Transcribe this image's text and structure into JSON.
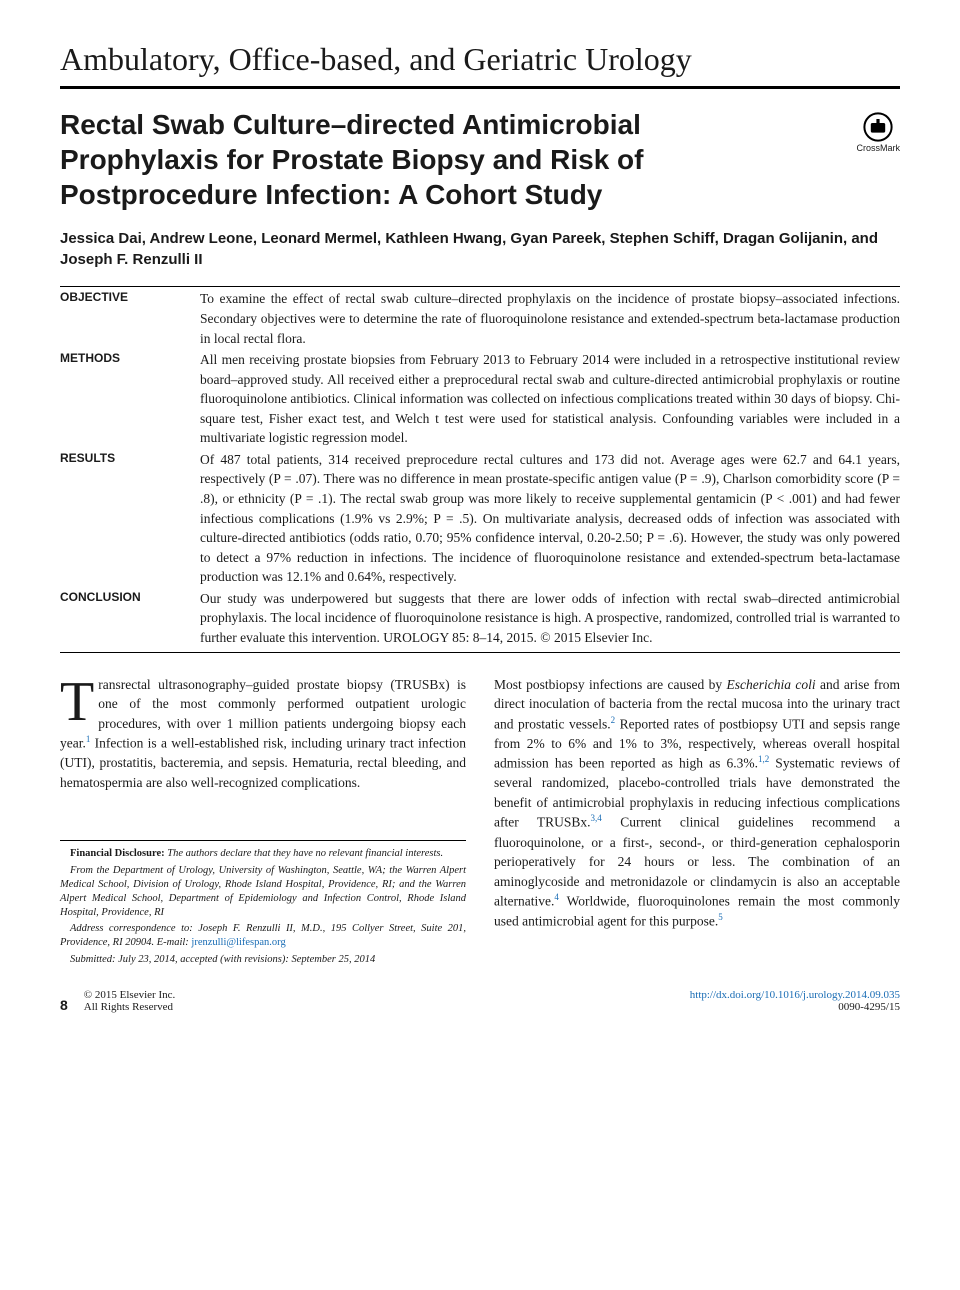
{
  "section_header": "Ambulatory, Office-based, and Geriatric Urology",
  "article_title": "Rectal Swab Culture–directed Antimicrobial Prophylaxis for Prostate Biopsy and Risk of Postprocedure Infection: A Cohort Study",
  "crossmark_label": "CrossMark",
  "authors": "Jessica Dai, Andrew Leone, Leonard Mermel, Kathleen Hwang, Gyan Pareek, Stephen Schiff, Dragan Golijanin, and Joseph F. Renzulli II",
  "abstract": {
    "objective": {
      "label": "OBJECTIVE",
      "text": "To examine the effect of rectal swab culture–directed prophylaxis on the incidence of prostate biopsy–associated infections. Secondary objectives were to determine the rate of fluoroquinolone resistance and extended-spectrum beta-lactamase production in local rectal flora."
    },
    "methods": {
      "label": "METHODS",
      "text": "All men receiving prostate biopsies from February 2013 to February 2014 were included in a retrospective institutional review board–approved study. All received either a preprocedural rectal swab and culture-directed antimicrobial prophylaxis or routine fluoroquinolone antibiotics. Clinical information was collected on infectious complications treated within 30 days of biopsy. Chi-square test, Fisher exact test, and Welch t test were used for statistical analysis. Confounding variables were included in a multivariate logistic regression model."
    },
    "results": {
      "label": "RESULTS",
      "text": "Of 487 total patients, 314 received preprocedure rectal cultures and 173 did not. Average ages were 62.7 and 64.1 years, respectively (P = .07). There was no difference in mean prostate-specific antigen value (P = .9), Charlson comorbidity score (P = .8), or ethnicity (P = .1). The rectal swab group was more likely to receive supplemental gentamicin (P < .001) and had fewer infectious complications (1.9% vs 2.9%; P = .5). On multivariate analysis, decreased odds of infection was associated with culture-directed antibiotics (odds ratio, 0.70; 95% confidence interval, 0.20-2.50; P = .6). However, the study was only powered to detect a 97% reduction in infections. The incidence of fluoroquinolone resistance and extended-spectrum beta-lactamase production was 12.1% and 0.64%, respectively."
    },
    "conclusion": {
      "label": "CONCLUSION",
      "text": "Our study was underpowered but suggests that there are lower odds of infection with rectal swab–directed antimicrobial prophylaxis. The local incidence of fluoroquinolone resistance is high. A prospective, randomized, controlled trial is warranted to further evaluate this intervention.   UROLOGY 85: 8–14, 2015. © 2015 Elsevier Inc."
    }
  },
  "body": {
    "col1_p1_dropcap": "T",
    "col1_p1": "ransrectal ultrasonography–guided prostate biopsy (TRUSBx) is one of the most commonly performed outpatient urologic procedures, with over 1 million patients undergoing biopsy each year.",
    "col1_p1_ref": "1",
    "col1_p1b": " Infection is a well-established risk, including urinary tract infection (UTI), prostatitis, bacteremia, and sepsis. Hematuria, rectal bleeding, and hematospermia are also well-recognized complications.",
    "col2_p1a": "Most postbiopsy infections are caused by ",
    "col2_p1_italic": "Escherichia coli",
    "col2_p1b": " and arise from direct inoculation of bacteria from the rectal mucosa into the urinary tract and prostatic vessels.",
    "col2_ref2": "2",
    "col2_p1c": " Reported rates of postbiopsy UTI and sepsis range from 2% to 6% and 1% to 3%, respectively, whereas overall hospital admission has been reported as high as 6.3%.",
    "col2_ref12": "1,2",
    "col2_p1d": " Systematic reviews of several randomized, placebo-controlled trials have demonstrated the benefit of antimicrobial prophylaxis in reducing infectious complications after TRUSBx.",
    "col2_ref34": "3,4",
    "col2_p1e": " Current clinical guidelines recommend a fluoroquinolone, or a first-, second-, or third-generation cephalosporin perioperatively for 24 hours or less. The combination of an aminoglycoside and metronidazole or clindamycin is also an acceptable alternative.",
    "col2_ref4": "4",
    "col2_p1f": " Worldwide, fluoroquinolones remain the most commonly used antimicrobial agent for this purpose.",
    "col2_ref5": "5"
  },
  "footnotes": {
    "fd_label": "Financial Disclosure:",
    "fd_text": " The authors declare that they have no relevant financial interests.",
    "affil": "From the Department of Urology, University of Washington, Seattle, WA; the Warren Alpert Medical School, Division of Urology, Rhode Island Hospital, Providence, RI; and the Warren Alpert Medical School, Department of Epidemiology and Infection Control, Rhode Island Hospital, Providence, RI",
    "corr_label": "Address correspondence to: ",
    "corr_text": "Joseph F. Renzulli II, M.D., 195 Collyer Street, Suite 201, Providence, RI 20904. E-mail: ",
    "email": "jrenzulli@lifespan.org",
    "submitted": "Submitted: July 23, 2014, accepted (with revisions): September 25, 2014"
  },
  "footer": {
    "page_num": "8",
    "copyright": "© 2015 Elsevier Inc.",
    "rights": "All Rights Reserved",
    "doi": "http://dx.doi.org/10.1016/j.urology.2014.09.035",
    "issn": "0090-4295/15"
  }
}
